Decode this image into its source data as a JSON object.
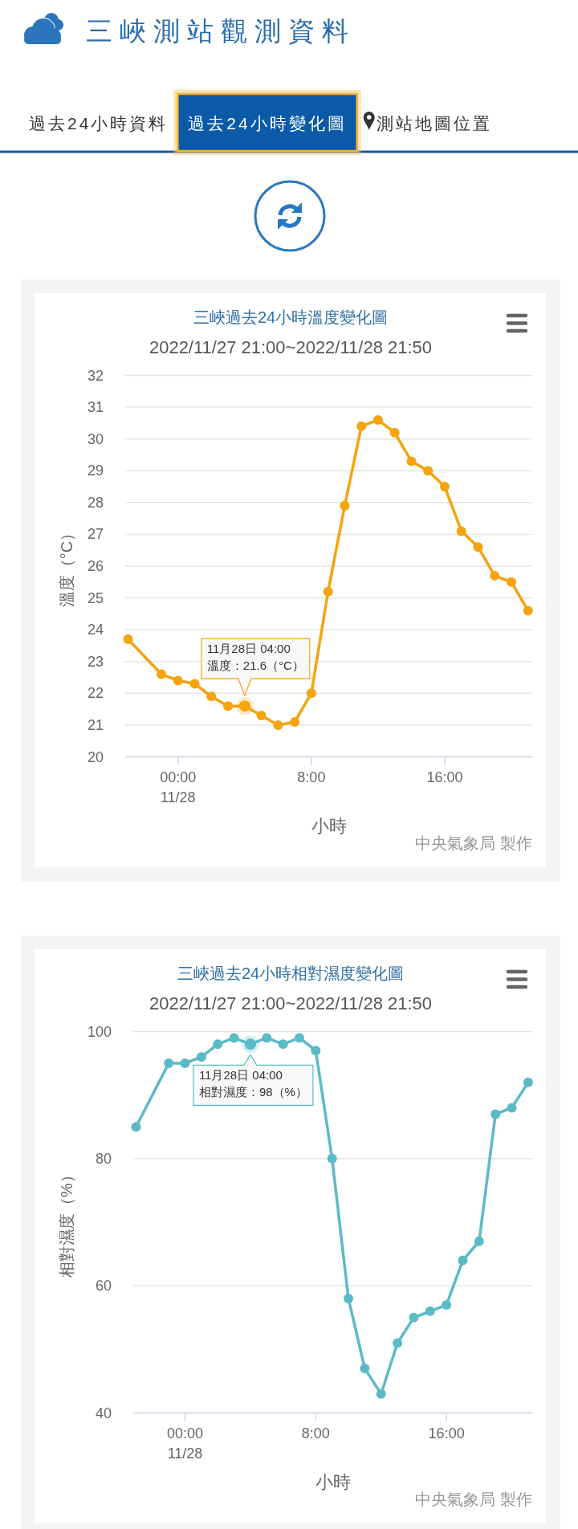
{
  "chart_data": [
    {
      "type": "other",
      "title": "三峽測站觀測資料",
      "annotations": [
        "過去24小時資料",
        "過去24小時變化圖",
        "測站地圖位置"
      ]
    },
    {
      "type": "line",
      "title": "三峽過去24小時溫度變化圖",
      "subtitle": "2022/11/27 21:00~2022/11/28 21:50",
      "xlabel": "小時",
      "ylabel": "溫度（°C）",
      "x": [
        "2022-11-27T21:00",
        "2022-11-27T23:00",
        "2022-11-28T00:00",
        "2022-11-28T01:00",
        "2022-11-28T02:00",
        "2022-11-28T03:00",
        "2022-11-28T04:00",
        "2022-11-28T05:00",
        "2022-11-28T06:00",
        "2022-11-28T07:00",
        "2022-11-28T08:00",
        "2022-11-28T09:00",
        "2022-11-28T10:00",
        "2022-11-28T11:00",
        "2022-11-28T12:00",
        "2022-11-28T13:00",
        "2022-11-28T14:00",
        "2022-11-28T15:00",
        "2022-11-28T16:00",
        "2022-11-28T17:00",
        "2022-11-28T18:00",
        "2022-11-28T19:00",
        "2022-11-28T20:00",
        "2022-11-28T21:00"
      ],
      "series": [
        {
          "color": "#f5a30f",
          "values": [
            23.7,
            22.6,
            22.4,
            22.3,
            21.9,
            21.6,
            21.6,
            21.3,
            21.0,
            21.1,
            22.0,
            25.2,
            27.9,
            30.4,
            30.6,
            30.2,
            29.3,
            29.0,
            28.5,
            27.1,
            26.6,
            25.7,
            25.5,
            24.6
          ]
        }
      ],
      "xlim": [
        "2022-11-27T20:50",
        "2022-11-28T21:15"
      ],
      "xticks": [
        {
          "value": "2022-11-28T00:00",
          "label": "00:00\n11/28"
        },
        {
          "value": "2022-11-28T08:00",
          "label": "8:00"
        },
        {
          "value": "2022-11-28T16:00",
          "label": "16:00"
        }
      ],
      "ylim": [
        20,
        32
      ],
      "yticks": [
        20,
        21,
        22,
        23,
        24,
        25,
        26,
        27,
        28,
        29,
        30,
        31,
        32
      ],
      "grid": "y",
      "marker": "circle",
      "line_style": "solid",
      "annotations": [
        {
          "text": "11月28日 04:00\n溫度：21.6（°C）",
          "x": "2022-11-28T04:00",
          "y": 21.6
        },
        "中央氣象局 製作"
      ]
    },
    {
      "type": "line",
      "title": "三峽過去24小時相對濕度變化圖",
      "subtitle": "2022/11/27 21:00~2022/11/28 21:50",
      "xlabel": "小時",
      "ylabel": "相對濕度（%）",
      "x": [
        "2022-11-27T21:00",
        "2022-11-27T23:00",
        "2022-11-28T00:00",
        "2022-11-28T01:00",
        "2022-11-28T02:00",
        "2022-11-28T03:00",
        "2022-11-28T04:00",
        "2022-11-28T05:00",
        "2022-11-28T06:00",
        "2022-11-28T07:00",
        "2022-11-28T08:00",
        "2022-11-28T09:00",
        "2022-11-28T10:00",
        "2022-11-28T11:00",
        "2022-11-28T12:00",
        "2022-11-28T13:00",
        "2022-11-28T14:00",
        "2022-11-28T15:00",
        "2022-11-28T16:00",
        "2022-11-28T17:00",
        "2022-11-28T18:00",
        "2022-11-28T19:00",
        "2022-11-28T20:00",
        "2022-11-28T21:00"
      ],
      "series": [
        {
          "color": "#5bbac8",
          "values": [
            85,
            95,
            95,
            96,
            98,
            99,
            98,
            99,
            98,
            99,
            97,
            80,
            58,
            47,
            43,
            51,
            55,
            56,
            57,
            64,
            67,
            87,
            88,
            92
          ]
        }
      ],
      "xlim": [
        "2022-11-27T20:50",
        "2022-11-28T21:15"
      ],
      "xticks": [
        {
          "value": "2022-11-28T00:00",
          "label": "00:00\n11/28"
        },
        {
          "value": "2022-11-28T08:00",
          "label": "8:00"
        },
        {
          "value": "2022-11-28T16:00",
          "label": "16:00"
        }
      ],
      "ylim": [
        40,
        100
      ],
      "yticks": [
        40,
        60,
        80,
        100
      ],
      "grid": "y",
      "marker": "circle",
      "line_style": "solid",
      "annotations": [
        {
          "text": "11月28日 04:00\n相對濕度：98（%）",
          "x": "2022-11-28T04:00",
          "y": 98
        },
        "中央氣象局 製作"
      ]
    }
  ]
}
